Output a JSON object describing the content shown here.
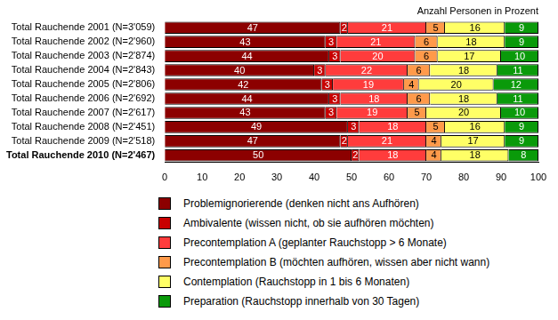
{
  "chart_data": {
    "type": "bar",
    "title": "Anzahl Personen in Prozent",
    "orientation": "horizontal",
    "stacked": true,
    "data_labels": true,
    "grid": false,
    "legend": "bottom",
    "categories": [
      "Total Rauchende 2001 (N=3'059)",
      "Total Rauchende 2002 (N=2'960)",
      "Total Rauchende 2003 (N=2'874)",
      "Total Rauchende 2004 (N=2'843)",
      "Total Rauchende 2005 (N=2'806)",
      "Total Rauchende 2006 (N=2'692)",
      "Total Rauchende 2007 (N=2'617)",
      "Total Rauchende 2008 (N=2'451)",
      "Total Rauchende 2009 (N=2'518)",
      "Total Rauchende 2010 (N=2'467)"
    ],
    "series": [
      {
        "name": "Problemignorierende (denken nicht ans Aufhören)",
        "color": "#8c0000",
        "values": [
          47,
          43,
          44,
          40,
          42,
          44,
          43,
          49,
          47,
          50
        ]
      },
      {
        "name": "Ambivalente (wissen nicht, ob sie aufhören möchten)",
        "color": "#c80000",
        "values": [
          2,
          3,
          3,
          3,
          3,
          3,
          3,
          3,
          2,
          2
        ]
      },
      {
        "name": "Precontemplation A (geplanter Rauchstopp > 6 Monate)",
        "color": "#ff3c3c",
        "values": [
          21,
          21,
          20,
          22,
          19,
          18,
          19,
          18,
          21,
          18
        ]
      },
      {
        "name": "Precontemplation B (möchten aufhören, wissen aber nicht wann)",
        "color": "#ff9a4a",
        "values": [
          5,
          6,
          6,
          6,
          4,
          6,
          5,
          5,
          4,
          4
        ]
      },
      {
        "name": "Contemplation (Rauchstopp in 1 bis 6 Monaten)",
        "color": "#ffff66",
        "values": [
          16,
          18,
          17,
          18,
          20,
          18,
          20,
          16,
          17,
          18
        ]
      },
      {
        "name": "Preparation (Rauchstopp innerhalb von 30 Tagen)",
        "color": "#0a9a0a",
        "values": [
          9,
          9,
          10,
          11,
          12,
          11,
          10,
          9,
          9,
          8
        ]
      }
    ],
    "xlim": [
      0,
      100
    ],
    "xticks": [
      0,
      10,
      20,
      30,
      40,
      50,
      60,
      70,
      80,
      90,
      100
    ]
  }
}
